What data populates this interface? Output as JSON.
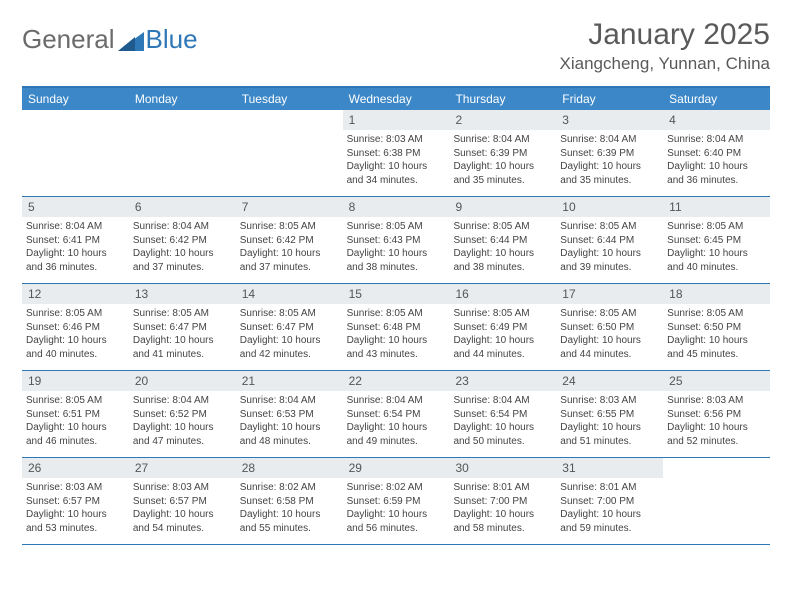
{
  "logo": {
    "text1": "General",
    "text2": "Blue"
  },
  "title": "January 2025",
  "location": "Xiangcheng, Yunnan, China",
  "colors": {
    "header_bar": "#3b87c8",
    "border": "#2f78b8",
    "daynum_bg": "#e8ecef",
    "text": "#444444",
    "title_text": "#5a5a5a"
  },
  "weekdays": [
    "Sunday",
    "Monday",
    "Tuesday",
    "Wednesday",
    "Thursday",
    "Friday",
    "Saturday"
  ],
  "weeks": [
    [
      {
        "n": "",
        "sr": "",
        "ss": "",
        "dl": ""
      },
      {
        "n": "",
        "sr": "",
        "ss": "",
        "dl": ""
      },
      {
        "n": "",
        "sr": "",
        "ss": "",
        "dl": ""
      },
      {
        "n": "1",
        "sr": "Sunrise: 8:03 AM",
        "ss": "Sunset: 6:38 PM",
        "dl": "Daylight: 10 hours and 34 minutes."
      },
      {
        "n": "2",
        "sr": "Sunrise: 8:04 AM",
        "ss": "Sunset: 6:39 PM",
        "dl": "Daylight: 10 hours and 35 minutes."
      },
      {
        "n": "3",
        "sr": "Sunrise: 8:04 AM",
        "ss": "Sunset: 6:39 PM",
        "dl": "Daylight: 10 hours and 35 minutes."
      },
      {
        "n": "4",
        "sr": "Sunrise: 8:04 AM",
        "ss": "Sunset: 6:40 PM",
        "dl": "Daylight: 10 hours and 36 minutes."
      }
    ],
    [
      {
        "n": "5",
        "sr": "Sunrise: 8:04 AM",
        "ss": "Sunset: 6:41 PM",
        "dl": "Daylight: 10 hours and 36 minutes."
      },
      {
        "n": "6",
        "sr": "Sunrise: 8:04 AM",
        "ss": "Sunset: 6:42 PM",
        "dl": "Daylight: 10 hours and 37 minutes."
      },
      {
        "n": "7",
        "sr": "Sunrise: 8:05 AM",
        "ss": "Sunset: 6:42 PM",
        "dl": "Daylight: 10 hours and 37 minutes."
      },
      {
        "n": "8",
        "sr": "Sunrise: 8:05 AM",
        "ss": "Sunset: 6:43 PM",
        "dl": "Daylight: 10 hours and 38 minutes."
      },
      {
        "n": "9",
        "sr": "Sunrise: 8:05 AM",
        "ss": "Sunset: 6:44 PM",
        "dl": "Daylight: 10 hours and 38 minutes."
      },
      {
        "n": "10",
        "sr": "Sunrise: 8:05 AM",
        "ss": "Sunset: 6:44 PM",
        "dl": "Daylight: 10 hours and 39 minutes."
      },
      {
        "n": "11",
        "sr": "Sunrise: 8:05 AM",
        "ss": "Sunset: 6:45 PM",
        "dl": "Daylight: 10 hours and 40 minutes."
      }
    ],
    [
      {
        "n": "12",
        "sr": "Sunrise: 8:05 AM",
        "ss": "Sunset: 6:46 PM",
        "dl": "Daylight: 10 hours and 40 minutes."
      },
      {
        "n": "13",
        "sr": "Sunrise: 8:05 AM",
        "ss": "Sunset: 6:47 PM",
        "dl": "Daylight: 10 hours and 41 minutes."
      },
      {
        "n": "14",
        "sr": "Sunrise: 8:05 AM",
        "ss": "Sunset: 6:47 PM",
        "dl": "Daylight: 10 hours and 42 minutes."
      },
      {
        "n": "15",
        "sr": "Sunrise: 8:05 AM",
        "ss": "Sunset: 6:48 PM",
        "dl": "Daylight: 10 hours and 43 minutes."
      },
      {
        "n": "16",
        "sr": "Sunrise: 8:05 AM",
        "ss": "Sunset: 6:49 PM",
        "dl": "Daylight: 10 hours and 44 minutes."
      },
      {
        "n": "17",
        "sr": "Sunrise: 8:05 AM",
        "ss": "Sunset: 6:50 PM",
        "dl": "Daylight: 10 hours and 44 minutes."
      },
      {
        "n": "18",
        "sr": "Sunrise: 8:05 AM",
        "ss": "Sunset: 6:50 PM",
        "dl": "Daylight: 10 hours and 45 minutes."
      }
    ],
    [
      {
        "n": "19",
        "sr": "Sunrise: 8:05 AM",
        "ss": "Sunset: 6:51 PM",
        "dl": "Daylight: 10 hours and 46 minutes."
      },
      {
        "n": "20",
        "sr": "Sunrise: 8:04 AM",
        "ss": "Sunset: 6:52 PM",
        "dl": "Daylight: 10 hours and 47 minutes."
      },
      {
        "n": "21",
        "sr": "Sunrise: 8:04 AM",
        "ss": "Sunset: 6:53 PM",
        "dl": "Daylight: 10 hours and 48 minutes."
      },
      {
        "n": "22",
        "sr": "Sunrise: 8:04 AM",
        "ss": "Sunset: 6:54 PM",
        "dl": "Daylight: 10 hours and 49 minutes."
      },
      {
        "n": "23",
        "sr": "Sunrise: 8:04 AM",
        "ss": "Sunset: 6:54 PM",
        "dl": "Daylight: 10 hours and 50 minutes."
      },
      {
        "n": "24",
        "sr": "Sunrise: 8:03 AM",
        "ss": "Sunset: 6:55 PM",
        "dl": "Daylight: 10 hours and 51 minutes."
      },
      {
        "n": "25",
        "sr": "Sunrise: 8:03 AM",
        "ss": "Sunset: 6:56 PM",
        "dl": "Daylight: 10 hours and 52 minutes."
      }
    ],
    [
      {
        "n": "26",
        "sr": "Sunrise: 8:03 AM",
        "ss": "Sunset: 6:57 PM",
        "dl": "Daylight: 10 hours and 53 minutes."
      },
      {
        "n": "27",
        "sr": "Sunrise: 8:03 AM",
        "ss": "Sunset: 6:57 PM",
        "dl": "Daylight: 10 hours and 54 minutes."
      },
      {
        "n": "28",
        "sr": "Sunrise: 8:02 AM",
        "ss": "Sunset: 6:58 PM",
        "dl": "Daylight: 10 hours and 55 minutes."
      },
      {
        "n": "29",
        "sr": "Sunrise: 8:02 AM",
        "ss": "Sunset: 6:59 PM",
        "dl": "Daylight: 10 hours and 56 minutes."
      },
      {
        "n": "30",
        "sr": "Sunrise: 8:01 AM",
        "ss": "Sunset: 7:00 PM",
        "dl": "Daylight: 10 hours and 58 minutes."
      },
      {
        "n": "31",
        "sr": "Sunrise: 8:01 AM",
        "ss": "Sunset: 7:00 PM",
        "dl": "Daylight: 10 hours and 59 minutes."
      },
      {
        "n": "",
        "sr": "",
        "ss": "",
        "dl": ""
      }
    ]
  ]
}
